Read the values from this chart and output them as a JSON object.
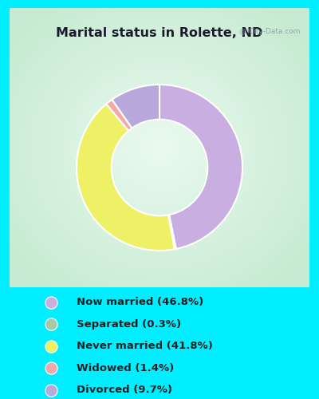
{
  "title": "Marital status in Rolette, ND",
  "slices": [
    46.8,
    0.3,
    41.8,
    1.4,
    9.7
  ],
  "labels": [
    "Now married (46.8%)",
    "Separated (0.3%)",
    "Never married (41.8%)",
    "Widowed (1.4%)",
    "Divorced (9.7%)"
  ],
  "colors": [
    "#c9aee2",
    "#aac8a8",
    "#eef066",
    "#f4a8a8",
    "#b8a8dc"
  ],
  "bg_outer": "#00eeff",
  "bg_chart_edge": "#c8e8d0",
  "bg_chart_center": "#e8f8f0",
  "title_color": "#1a1a2e",
  "legend_text_color": "#222222",
  "wedge_linewidth": 1.5,
  "wedge_linecolor": "#ffffff",
  "figsize": [
    4.0,
    5.0
  ],
  "dpi": 100
}
